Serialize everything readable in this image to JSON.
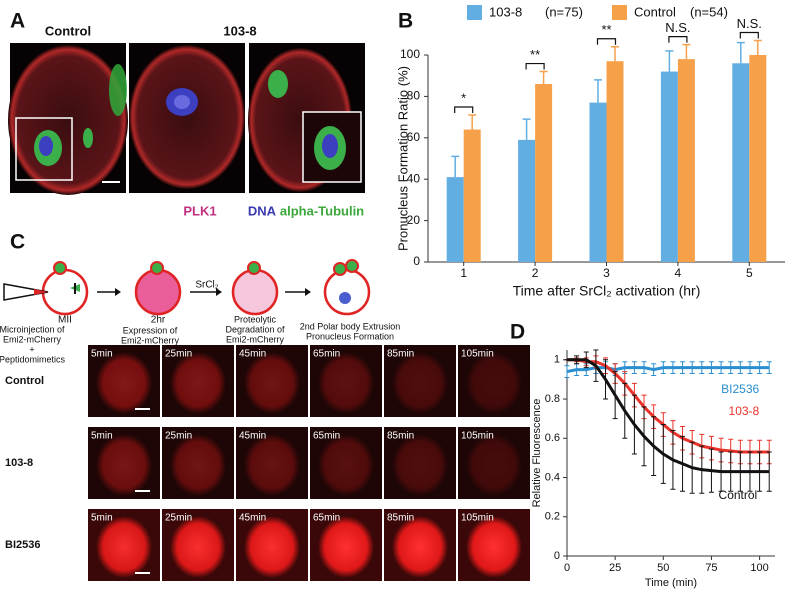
{
  "panel_a": {
    "label": "A",
    "titles": [
      "Control",
      "103-8"
    ],
    "stains": [
      "PLK1",
      "DNA",
      "alpha-Tubulin"
    ]
  },
  "chart_data": [
    {
      "type": "bar",
      "label": "B",
      "xlabel": "Time after SrCl₂ activation (hr)",
      "ylabel": "Pronucleus Formation Ratio (%)",
      "categories": [
        "1",
        "2",
        "3",
        "4",
        "5"
      ],
      "series": [
        {
          "name": "103-8",
          "note": "(n=75)",
          "color": "#62aee3",
          "values": [
            41,
            59,
            77,
            92,
            96
          ],
          "errors": [
            10,
            10,
            11,
            10,
            10
          ]
        },
        {
          "name": "Control",
          "note": "(n=54)",
          "color": "#f7a04a",
          "values": [
            64,
            86,
            97,
            98,
            100
          ],
          "errors": [
            7,
            6,
            7,
            7,
            7
          ]
        }
      ],
      "significance": [
        "*",
        "**",
        "**",
        "N.S.",
        "N.S."
      ],
      "ylim": [
        0,
        100
      ],
      "yticks": [
        0,
        20,
        40,
        60,
        80,
        100
      ]
    },
    {
      "type": "line",
      "label": "D",
      "xlabel": "Time (min)",
      "ylabel": "Relative Fluorescence",
      "x": [
        0,
        5,
        10,
        15,
        20,
        25,
        30,
        35,
        40,
        45,
        50,
        55,
        60,
        65,
        70,
        75,
        80,
        85,
        90,
        95,
        100,
        105
      ],
      "series": [
        {
          "name": "BI2536",
          "color": "#2a8fd0",
          "values": [
            0.94,
            0.95,
            0.95,
            0.96,
            0.96,
            0.95,
            0.96,
            0.96,
            0.96,
            0.95,
            0.96,
            0.96,
            0.96,
            0.96,
            0.96,
            0.96,
            0.96,
            0.96,
            0.96,
            0.96,
            0.96,
            0.96
          ],
          "errors": [
            0.03,
            0.03,
            0.03,
            0.03,
            0.03,
            0.03,
            0.03,
            0.03,
            0.03,
            0.03,
            0.03,
            0.03,
            0.03,
            0.03,
            0.03,
            0.03,
            0.03,
            0.03,
            0.03,
            0.03,
            0.03,
            0.03
          ]
        },
        {
          "name": "103-8",
          "color": "#e8322a",
          "values": [
            1,
            1,
            0.99,
            0.99,
            0.97,
            0.93,
            0.88,
            0.82,
            0.76,
            0.71,
            0.67,
            0.63,
            0.6,
            0.58,
            0.56,
            0.55,
            0.54,
            0.535,
            0.53,
            0.53,
            0.53,
            0.53
          ],
          "errors": [
            0,
            0.01,
            0.02,
            0.03,
            0.04,
            0.05,
            0.06,
            0.06,
            0.06,
            0.06,
            0.06,
            0.06,
            0.06,
            0.06,
            0.06,
            0.06,
            0.06,
            0.06,
            0.06,
            0.06,
            0.06,
            0.06
          ]
        },
        {
          "name": "Control",
          "color": "#111111",
          "values": [
            1,
            1,
            1,
            0.97,
            0.9,
            0.82,
            0.74,
            0.67,
            0.61,
            0.56,
            0.52,
            0.49,
            0.47,
            0.45,
            0.44,
            0.435,
            0.43,
            0.43,
            0.43,
            0.43,
            0.43,
            0.43
          ],
          "errors": [
            0,
            0.02,
            0.04,
            0.08,
            0.1,
            0.12,
            0.14,
            0.15,
            0.15,
            0.15,
            0.15,
            0.15,
            0.14,
            0.13,
            0.12,
            0.11,
            0.1,
            0.1,
            0.1,
            0.1,
            0.1,
            0.1
          ]
        }
      ],
      "xlim": [
        0,
        108
      ],
      "xticks": [
        0,
        25,
        50,
        75,
        100
      ],
      "ylim": [
        0,
        1.05
      ],
      "yticks": [
        0,
        0.2,
        0.4,
        0.6,
        0.8,
        1
      ]
    }
  ],
  "panel_c": {
    "label": "C",
    "stages": [
      {
        "name": "MII",
        "caption": [
          "Microinjection of",
          "Emi2-mCherry",
          "+",
          "Peptidomimetics"
        ]
      },
      {
        "name": "2hr",
        "caption": [
          "Expression of",
          "Emi2-mCherry"
        ]
      },
      {
        "caption": [
          "Proteolytic",
          "Degradation of",
          "Emi2-mCherry"
        ]
      },
      {
        "caption": [
          "2nd Polar body Extrusion",
          "Pronucleus Formation"
        ]
      }
    ],
    "treatment": "SrCl₂",
    "rows": [
      "Control",
      "103-8",
      "BI2536"
    ],
    "times": [
      "5min",
      "25min",
      "45min",
      "65min",
      "85min",
      "105min"
    ]
  }
}
